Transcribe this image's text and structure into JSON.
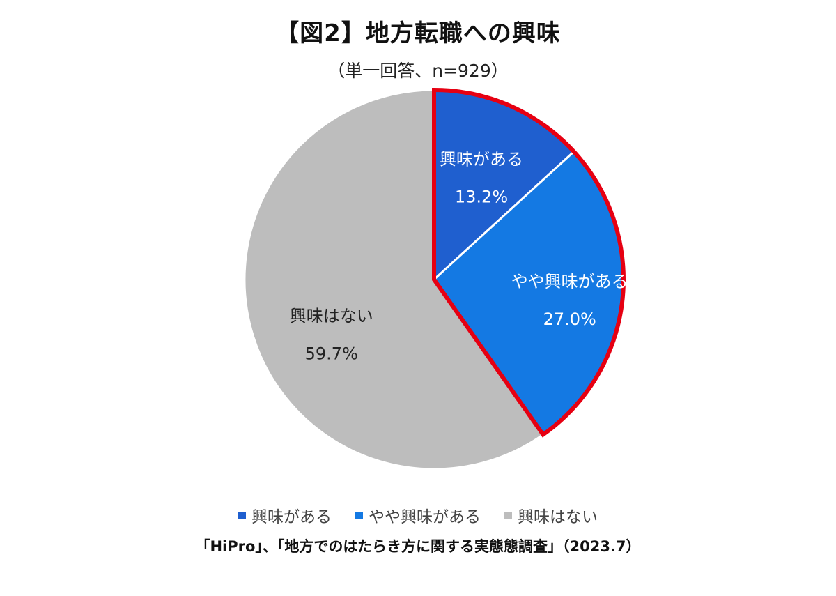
{
  "chart_data": {
    "type": "pie",
    "title": "【図2】地方転職への興味",
    "subtitle": "（単一回答、n=929）",
    "categories": [
      "興味がある",
      "やや興味がある",
      "興味はない"
    ],
    "values": [
      13.2,
      27.0,
      59.7
    ],
    "value_labels": [
      "13.2%",
      "27.0%",
      "59.7%"
    ],
    "colors": [
      "#1f5fcf",
      "#1479e3",
      "#bdbdbd"
    ],
    "label_colors": [
      "#ffffff",
      "#ffffff",
      "#222222"
    ],
    "highlight": {
      "slices": [
        0,
        1
      ],
      "color": "#e60012"
    },
    "legend": {
      "placement": "bottom"
    },
    "start": "top",
    "direction": "clockwise"
  },
  "source": "「HiPro」、「地方でのはたらき方に関する実態態調査」（2023.7）"
}
